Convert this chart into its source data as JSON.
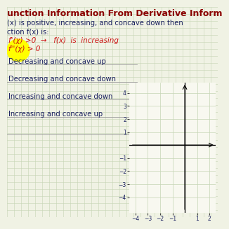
{
  "title": "unction Information From Derivative Inform",
  "subtitle_line1": "(x) is positive, increasing, and concave down then",
  "subtitle_line2": "ction f(x) is:",
  "handwritten_line1": "f'(x) > 0  →  f(x) is increasing",
  "handwritten_line2": "f''(x) > 0",
  "options": [
    "Decreasing and concave up",
    "Decreasing and concave down",
    "Increasing and concave down",
    "Increasing and concave up"
  ],
  "bg_color": "#f0f2e4",
  "grid_color": "#c5d5b5",
  "text_color_black": "#1a2060",
  "text_color_red": "#cc1111",
  "title_color": "#8b0000",
  "highlight_color": "#ffff00",
  "axis_bg_color": "#f8f8f0",
  "axis_xlim": [
    -4.5,
    2.5
  ],
  "axis_ylim": [
    -5.2,
    4.8
  ],
  "axis_xticks": [
    -4,
    -3,
    -2,
    -1,
    1,
    2
  ],
  "axis_yticks": [
    -4,
    -3,
    -2,
    -1,
    1,
    2,
    3,
    4
  ]
}
